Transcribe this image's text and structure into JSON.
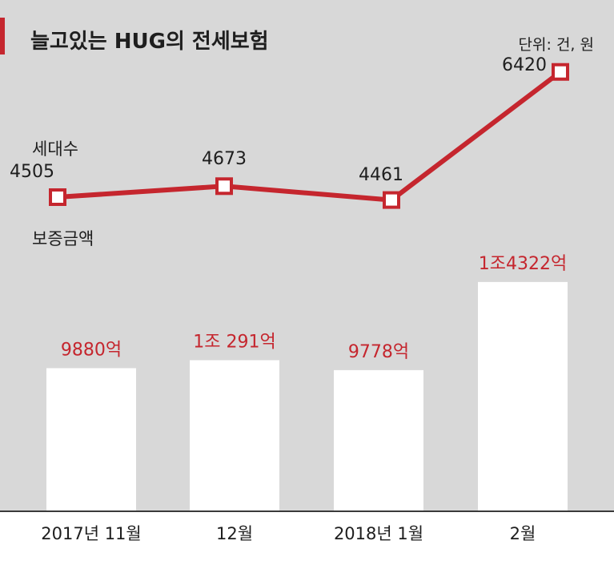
{
  "title": "늘고있는 HUG의 전세보험",
  "unit_note": "단위: 건, 원",
  "colors": {
    "panel": "#d8d8d8",
    "accent": "#c5262e",
    "bar": "#ffffff",
    "text": "#1e1e1e",
    "axis": "#3a3a3a",
    "background": "#ffffff"
  },
  "chart_data": {
    "type": "bar",
    "categories": [
      "2017년 11월",
      "12월",
      "2018년 1월",
      "2월"
    ],
    "series": [
      {
        "name": "세대수",
        "type": "line",
        "values": [
          4505,
          4673,
          4461,
          6420
        ],
        "labels": [
          "4505",
          "4673",
          "4461",
          "6420"
        ]
      },
      {
        "name": "보증금액",
        "type": "bar",
        "values": [
          9880,
          10291,
          9778,
          14322
        ],
        "labels": [
          "9880억",
          "1조 291억",
          "9778억",
          "1조4322억"
        ]
      }
    ],
    "grid": false,
    "legend": "none"
  }
}
